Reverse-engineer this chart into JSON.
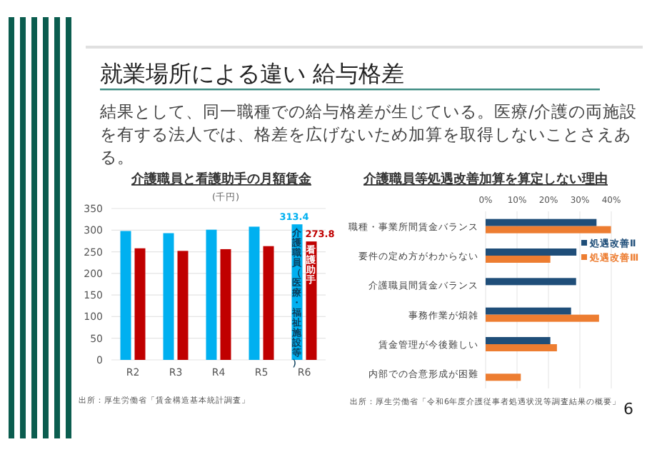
{
  "chart_data": [
    {
      "type": "other",
      "title": "就業場所による違い 給与格差",
      "subtitle": "結果として、同一職種での給与格差が生じている。医療/介護の両施設を有する法人では、格差を広げないため加算を取得しないことさえある。",
      "annotations": [
        "6"
      ]
    },
    {
      "type": "bar",
      "title": "介護職員と看護助手の月額賃金",
      "ylabel": "(千円)",
      "categories": [
        "R2",
        "R3",
        "R4",
        "R5",
        "R6"
      ],
      "series": [
        {
          "name": "介護職員（医療・福祉施設等）",
          "color": "#00b0f0",
          "values": [
            298,
            293,
            301,
            308,
            313.4
          ],
          "value_labels": [
            null,
            null,
            null,
            null,
            "313.4"
          ]
        },
        {
          "name": "看護助手",
          "color": "#c00000",
          "values": [
            258,
            252,
            256,
            263,
            273.8
          ],
          "value_labels": [
            null,
            null,
            null,
            null,
            "273.8"
          ]
        }
      ],
      "ylim": [
        0,
        350
      ],
      "yticks": [
        0,
        50,
        100,
        150,
        200,
        250,
        300,
        350
      ],
      "grid": "y",
      "annotations": [
        "出所：厚生労働省「賃金構造基本統計調査」"
      ]
    },
    {
      "type": "bar",
      "orientation": "horizontal",
      "title": "介護職員等処遇改善加算を算定しない理由",
      "categories": [
        "職種・事業所間賃金バランス",
        "要件の定め方がわからない",
        "介護職員間賃金バランス",
        "事務作業が煩雑",
        "賃金管理が今後難しい",
        "内部での合意形成が困難"
      ],
      "series": [
        {
          "name": "処遇改善Ⅱ",
          "color": "#1f4e79",
          "values": [
            35.3,
            28.9,
            28.8,
            27.2,
            20.6,
            null
          ]
        },
        {
          "name": "処遇改善Ⅲ",
          "color": "#ed7d31",
          "values": [
            39.9,
            20.6,
            null,
            36.1,
            22.7,
            11.2
          ]
        }
      ],
      "xlim": [
        0,
        40
      ],
      "xticks": [
        {
          "value": 0,
          "label": "0%"
        },
        {
          "value": 10,
          "label": "10%"
        },
        {
          "value": 20,
          "label": "20%"
        },
        {
          "value": 30,
          "label": "30%"
        },
        {
          "value": 40,
          "label": "40%"
        }
      ],
      "grid": "x",
      "legend": "right",
      "annotations": [
        "出所：厚生労働省「令和6年度介護従事者処遇状況等調査結果の概要」"
      ]
    }
  ]
}
